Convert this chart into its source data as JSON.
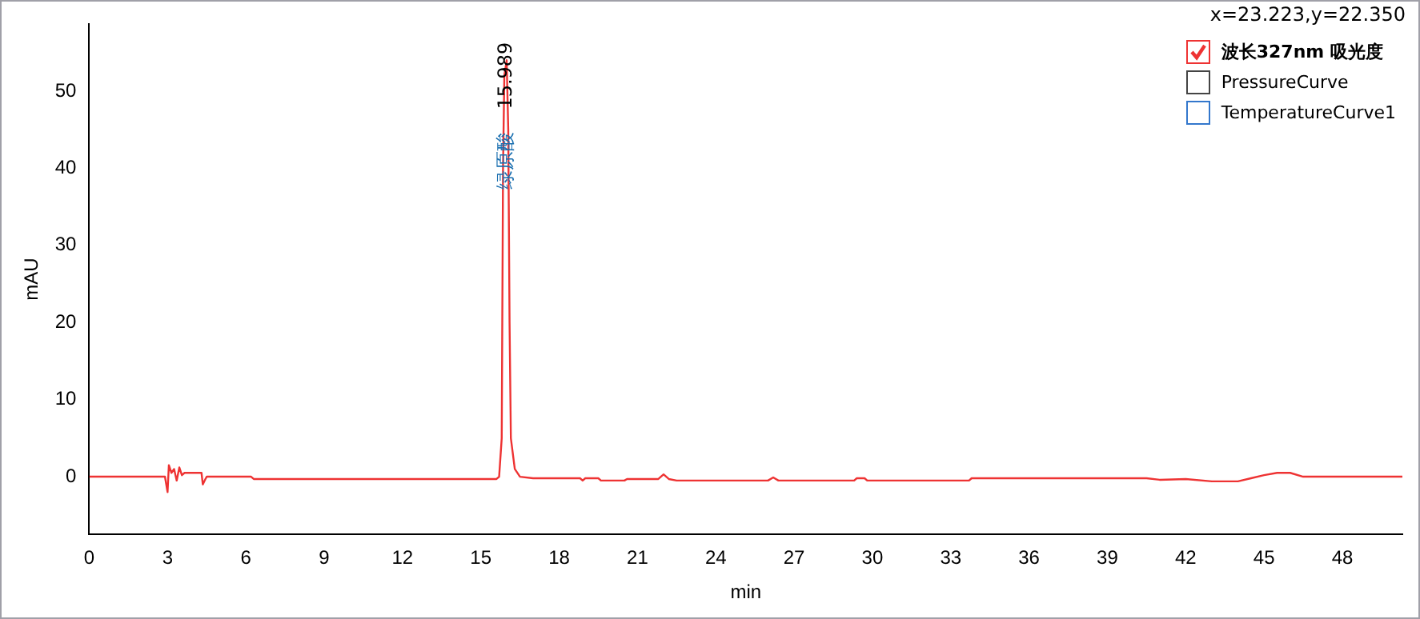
{
  "chart_data": {
    "type": "line",
    "xlabel": "min",
    "ylabel": "mAU",
    "annotations": [
      "x=23.223,y=22.350",
      {
        "text": "15.989",
        "x": 15.989,
        "y": 52
      },
      {
        "text": "绿原酸",
        "x": 15.989,
        "y": 41
      }
    ],
    "xlim": [
      0,
      50.3
    ],
    "xticks": [
      0,
      3,
      6,
      9,
      12,
      15,
      18,
      21,
      24,
      27,
      30,
      33,
      36,
      39,
      42,
      45,
      48
    ],
    "ylim": [
      -7.5,
      58.7
    ],
    "yticks": [
      0,
      10,
      20,
      30,
      40,
      50
    ],
    "grid": false,
    "legend": "top right",
    "marker": "none",
    "line_style": "solid",
    "series": [
      {
        "name": "波长327nm 吸光度",
        "color": "#ee3333",
        "x": [
          0,
          2.9,
          3.0,
          3.05,
          3.15,
          3.25,
          3.35,
          3.45,
          3.55,
          3.65,
          3.75,
          4.3,
          4.35,
          4.45,
          4.5,
          6.2,
          6.3,
          15.6,
          15.7,
          15.8,
          15.85,
          15.9,
          15.989,
          16.05,
          16.1,
          16.15,
          16.3,
          16.5,
          17,
          18.8,
          18.9,
          19,
          19.5,
          19.6,
          20.5,
          20.6,
          21.8,
          22,
          22.2,
          22.5,
          26,
          26.2,
          26.4,
          29.3,
          29.4,
          29.7,
          29.8,
          33.7,
          33.8,
          40.5,
          41,
          42,
          43,
          44,
          44.5,
          45,
          45.5,
          46,
          46.5,
          50.3
        ],
        "values": [
          0,
          0,
          -2,
          1.5,
          0.5,
          1,
          -0.5,
          1.2,
          0.2,
          0.5,
          0.5,
          0.5,
          -1,
          -0.3,
          0,
          0,
          -0.3,
          -0.3,
          0,
          5,
          40,
          52,
          54,
          45,
          20,
          5,
          1,
          0,
          -0.2,
          -0.2,
          -0.5,
          -0.2,
          -0.2,
          -0.5,
          -0.5,
          -0.3,
          -0.3,
          0.3,
          -0.3,
          -0.5,
          -0.5,
          -0.1,
          -0.5,
          -0.5,
          -0.2,
          -0.2,
          -0.5,
          -0.5,
          -0.2,
          -0.2,
          -0.4,
          -0.3,
          -0.6,
          -0.6,
          -0.2,
          0.2,
          0.5,
          0.5,
          0,
          0
        ]
      },
      {
        "name": "PressureCurve",
        "color": "#444444"
      },
      {
        "name": "TemperatureCurve1",
        "color": "#3377cc"
      }
    ]
  }
}
